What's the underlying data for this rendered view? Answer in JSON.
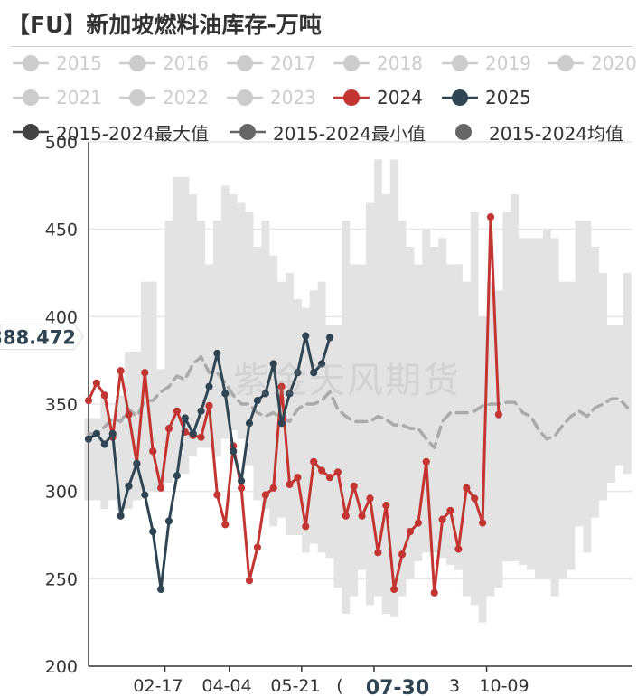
{
  "title": "【FU】新加坡燃料油库存-万吨",
  "watermark": "紫金天风期货",
  "legend": [
    {
      "label": "2015",
      "color": "#cccccc",
      "state": "off",
      "line": true
    },
    {
      "label": "2016",
      "color": "#cccccc",
      "state": "off",
      "line": true
    },
    {
      "label": "2017",
      "color": "#cccccc",
      "state": "off",
      "line": true
    },
    {
      "label": "2018",
      "color": "#cccccc",
      "state": "off",
      "line": true
    },
    {
      "label": "2019",
      "color": "#cccccc",
      "state": "off",
      "line": true
    },
    {
      "label": "2020",
      "color": "#cccccc",
      "state": "off",
      "line": true
    },
    {
      "label": "2021",
      "color": "#cccccc",
      "state": "off",
      "line": true
    },
    {
      "label": "2022",
      "color": "#cccccc",
      "state": "off",
      "line": true
    },
    {
      "label": "2023",
      "color": "#cccccc",
      "state": "off",
      "line": true
    },
    {
      "label": "2024",
      "color": "#c23531",
      "state": "on",
      "line": true
    },
    {
      "label": "2025",
      "color": "#2f4554",
      "state": "on",
      "line": true
    },
    {
      "label": "2015-2024最大值",
      "color": "#444444",
      "state": "on",
      "line": true
    },
    {
      "label": "2015-2024最小值",
      "color": "#666666",
      "state": "on",
      "line": true
    },
    {
      "label": "2015-2024均值",
      "color": "#666666",
      "state": "on",
      "line": false
    }
  ],
  "chart_data": {
    "type": "line",
    "title": "【FU】新加坡燃料油库存-万吨",
    "ylabel": "",
    "xlabel": "",
    "ylim": [
      200,
      500
    ],
    "y_ticks": [
      "200",
      "250",
      "300",
      "350",
      "400",
      "450",
      "500"
    ],
    "x_ticks": [
      "02-17",
      "04-04",
      "05-21",
      "07-30",
      "10-09"
    ],
    "x_ticks_partial": [
      "(",
      "3"
    ],
    "x_highlight": "07-30",
    "y_pointer": "388.472",
    "band_colors": {
      "band": "#e3e3e3",
      "avg": "#aaaaaa",
      "grid": "#e6e6e6",
      "axis": "#333333"
    },
    "band_max": [
      342,
      342,
      355,
      342,
      355,
      380,
      380,
      420,
      420,
      370,
      455,
      480,
      480,
      470,
      455,
      430,
      455,
      475,
      470,
      465,
      460,
      440,
      455,
      435,
      420,
      425,
      410,
      405,
      415,
      420,
      395,
      395,
      455,
      430,
      430,
      465,
      490,
      470,
      490,
      455,
      440,
      430,
      450,
      440,
      445,
      430,
      430,
      420,
      460,
      400,
      420,
      415,
      460,
      470,
      445,
      445,
      445,
      450,
      445,
      420,
      420,
      455,
      455,
      440,
      425,
      395,
      395,
      425
    ],
    "band_min": [
      295,
      295,
      290,
      295,
      290,
      290,
      295,
      300,
      300,
      300,
      305,
      310,
      310,
      320,
      325,
      325,
      320,
      330,
      335,
      330,
      315,
      295,
      290,
      280,
      285,
      275,
      275,
      265,
      270,
      265,
      262,
      245,
      230,
      240,
      255,
      235,
      240,
      230,
      228,
      240,
      250,
      260,
      265,
      265,
      262,
      258,
      255,
      240,
      235,
      225,
      240,
      245,
      260,
      260,
      258,
      255,
      250,
      250,
      240,
      250,
      255,
      280,
      265,
      285,
      295,
      305,
      315,
      310
    ],
    "series": [
      {
        "name": "2015-2024均值",
        "color": "#aaaaaa",
        "style": "dashed",
        "values": [
          333,
          333,
          337,
          342,
          340,
          347,
          343,
          352,
          352,
          357,
          360,
          366,
          364,
          373,
          377,
          368,
          368,
          362,
          355,
          350,
          350,
          345,
          343,
          345,
          342,
          340,
          347,
          350,
          350,
          352,
          357,
          347,
          343,
          340,
          340,
          340,
          343,
          341,
          338,
          338,
          336,
          336,
          330,
          325,
          340,
          345,
          345,
          345,
          346,
          349,
          350,
          350,
          351,
          351,
          345,
          343,
          335,
          330,
          332,
          338,
          343,
          346,
          343,
          348,
          350,
          353,
          353,
          348
        ]
      },
      {
        "name": "2024",
        "color": "#c23531",
        "values": [
          352,
          362,
          355,
          331,
          369,
          344,
          316,
          368,
          323,
          302,
          336,
          346,
          334,
          332,
          331,
          349,
          298,
          281,
          326,
          302,
          249,
          268,
          298,
          302,
          360,
          304,
          308,
          280,
          317,
          312,
          308,
          311,
          286,
          303,
          286,
          296,
          265,
          292,
          244,
          264,
          277,
          282,
          317,
          242,
          284,
          289,
          267,
          302,
          296,
          282,
          457,
          344
        ]
      },
      {
        "name": "2025",
        "color": "#2f4554",
        "values": [
          330,
          333,
          327,
          333,
          286,
          303,
          316,
          298,
          277,
          244,
          283,
          309,
          342,
          333,
          346,
          360,
          379,
          356,
          323,
          306,
          339,
          352,
          356,
          373,
          339,
          356,
          368,
          389,
          368,
          373,
          388
        ]
      }
    ]
  }
}
